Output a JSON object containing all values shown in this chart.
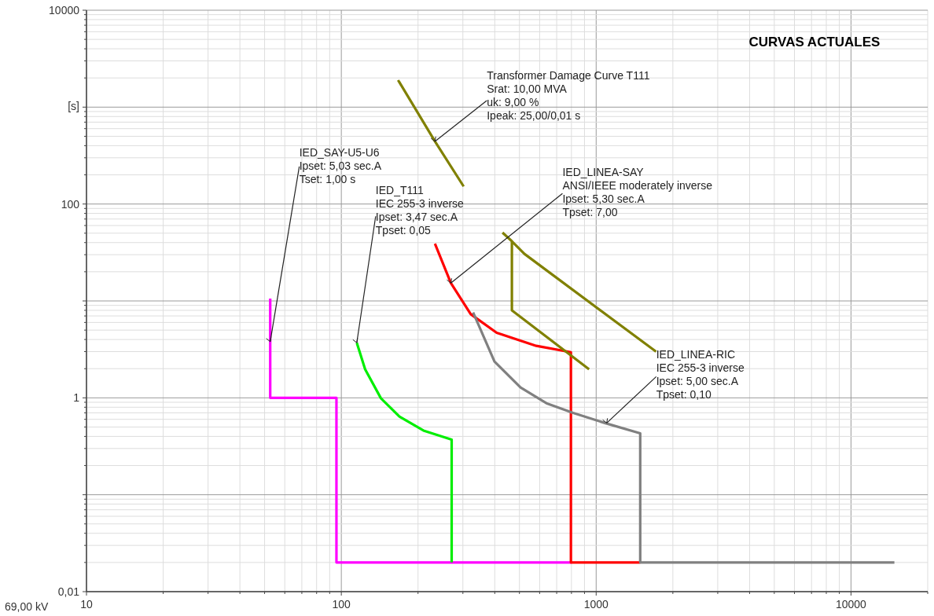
{
  "chart_data": {
    "type": "line",
    "title": "CURVAS ACTUALES",
    "xlabel": "69,00 kV",
    "ylabel": "[s]",
    "log": "xy",
    "grid": true,
    "marker": "none",
    "line_style": "solid",
    "xlim": [
      10,
      20000
    ],
    "ylim": [
      0.01,
      10000
    ],
    "xticks": [
      10,
      {
        "value": 20,
        "label": null
      },
      {
        "value": 30,
        "label": null
      },
      {
        "value": 40,
        "label": null
      },
      {
        "value": 50,
        "label": null
      },
      {
        "value": 60,
        "label": null
      },
      {
        "value": 70,
        "label": null
      },
      {
        "value": 80,
        "label": null
      },
      {
        "value": 90,
        "label": null
      },
      100,
      {
        "value": 200,
        "label": null
      },
      {
        "value": 300,
        "label": null
      },
      {
        "value": 400,
        "label": null
      },
      {
        "value": 500,
        "label": null
      },
      {
        "value": 600,
        "label": null
      },
      {
        "value": 700,
        "label": null
      },
      {
        "value": 800,
        "label": null
      },
      {
        "value": 900,
        "label": null
      },
      1000,
      {
        "value": 2000,
        "label": null
      },
      {
        "value": 3000,
        "label": null
      },
      {
        "value": 4000,
        "label": null
      },
      {
        "value": 5000,
        "label": null
      },
      {
        "value": 6000,
        "label": null
      },
      {
        "value": 7000,
        "label": null
      },
      {
        "value": 8000,
        "label": null
      },
      {
        "value": 9000,
        "label": null
      },
      10000,
      {
        "value": 20000,
        "label": null
      }
    ],
    "yticks": [
      {
        "value": 0.01,
        "label": "0,01"
      },
      {
        "value": 0.02,
        "label": null
      },
      {
        "value": 0.03,
        "label": null
      },
      {
        "value": 0.04,
        "label": null
      },
      {
        "value": 0.05,
        "label": null
      },
      {
        "value": 0.06,
        "label": null
      },
      {
        "value": 0.07,
        "label": null
      },
      {
        "value": 0.08,
        "label": null
      },
      {
        "value": 0.09,
        "label": null
      },
      {
        "value": 0.1,
        "label": null
      },
      {
        "value": 0.2,
        "label": null
      },
      {
        "value": 0.3,
        "label": null
      },
      {
        "value": 0.4,
        "label": null
      },
      {
        "value": 0.5,
        "label": null
      },
      {
        "value": 0.6,
        "label": null
      },
      {
        "value": 0.7,
        "label": null
      },
      {
        "value": 0.8,
        "label": null
      },
      {
        "value": 0.9,
        "label": null
      },
      1,
      {
        "value": 2,
        "label": null
      },
      {
        "value": 3,
        "label": null
      },
      {
        "value": 4,
        "label": null
      },
      {
        "value": 5,
        "label": null
      },
      {
        "value": 6,
        "label": null
      },
      {
        "value": 7,
        "label": null
      },
      {
        "value": 8,
        "label": null
      },
      {
        "value": 9,
        "label": null
      },
      {
        "value": 10,
        "label": null
      },
      {
        "value": 20,
        "label": null
      },
      {
        "value": 30,
        "label": null
      },
      {
        "value": 40,
        "label": null
      },
      {
        "value": 50,
        "label": null
      },
      {
        "value": 60,
        "label": null
      },
      {
        "value": 70,
        "label": null
      },
      {
        "value": 80,
        "label": null
      },
      {
        "value": 90,
        "label": null
      },
      100,
      {
        "value": 200,
        "label": null
      },
      {
        "value": 300,
        "label": null
      },
      {
        "value": 400,
        "label": null
      },
      {
        "value": 500,
        "label": null
      },
      {
        "value": 600,
        "label": null
      },
      {
        "value": 700,
        "label": null
      },
      {
        "value": 800,
        "label": null
      },
      {
        "value": 900,
        "label": null
      },
      {
        "value": 1000,
        "label": null
      },
      {
        "value": 2000,
        "label": null
      },
      {
        "value": 3000,
        "label": null
      },
      {
        "value": 4000,
        "label": null
      },
      {
        "value": 5000,
        "label": null
      },
      {
        "value": 6000,
        "label": null
      },
      {
        "value": 7000,
        "label": null
      },
      {
        "value": 8000,
        "label": null
      },
      {
        "value": 9000,
        "label": null
      },
      10000
    ],
    "series": [
      {
        "color": "#ff00ff",
        "x": [
          52.6,
          52.6,
          52.6,
          95.7,
          95.7,
          800
        ],
        "values": [
          10.6,
          3.8,
          1,
          1,
          0.02,
          0.02
        ]
      },
      {
        "color": "#00ee00",
        "x": [
          115,
          124,
          143,
          169,
          210,
          271,
          271
        ],
        "values": [
          3.7,
          1.97,
          0.99,
          0.64,
          0.46,
          0.37,
          0.02
        ]
      },
      {
        "color": "#ff0000",
        "x": [
          233,
          269,
          322,
          407,
          582,
          796,
          796,
          1490
        ],
        "values": [
          39,
          15.3,
          7.3,
          4.7,
          3.44,
          2.96,
          0.02,
          0.02
        ]
      },
      {
        "color": "#808080",
        "x": [
          329,
          399,
          505,
          638,
          812,
          1082,
          1489,
          1489,
          14800
        ],
        "values": [
          7.6,
          2.37,
          1.28,
          0.88,
          0.7,
          0.55,
          0.43,
          0.02,
          0.02
        ]
      },
      {
        "color": "#808000",
        "x": [
          167,
          233,
          302,
          360,
          429,
          467,
          467,
          938,
          700,
          467,
          523,
          1718
        ],
        "values": [
          1900,
          443,
          152,
          null,
          50.7,
          41.3,
          8.0,
          1.97,
          null,
          41.3,
          30.6,
          3.0
        ]
      }
    ],
    "annotations": [
      {
        "text": "IED_SAY-U5-U6\nIpset: 5,03 sec.A\nTset: 1,00 s",
        "x": 52.6,
        "y": 3.8
      },
      {
        "text": "IED_T111\nIEC 255-3 inverse\nIpset: 3,47 sec.A\nTpset: 0,05",
        "x": 115,
        "y": 3.7
      },
      {
        "text": "Transformer Damage Curve T111\nSrat: 10,00 MVA\nuk: 9,00 %\nIpeak: 25,00/0,01 s",
        "x": 233,
        "y": 443
      },
      {
        "text": "IED_LINEA-SAY\nANSI/IEEE moderately inverse\nIpset: 5,30 sec.A\nTpset: 7,00",
        "x": 269,
        "y": 15.3
      },
      {
        "text": "IED_LINEA-RIC\nIEC 255-3 inverse\nIpset: 5,00 sec.A\nTpset: 0,10",
        "x": 1100,
        "y": 0.55
      }
    ]
  }
}
